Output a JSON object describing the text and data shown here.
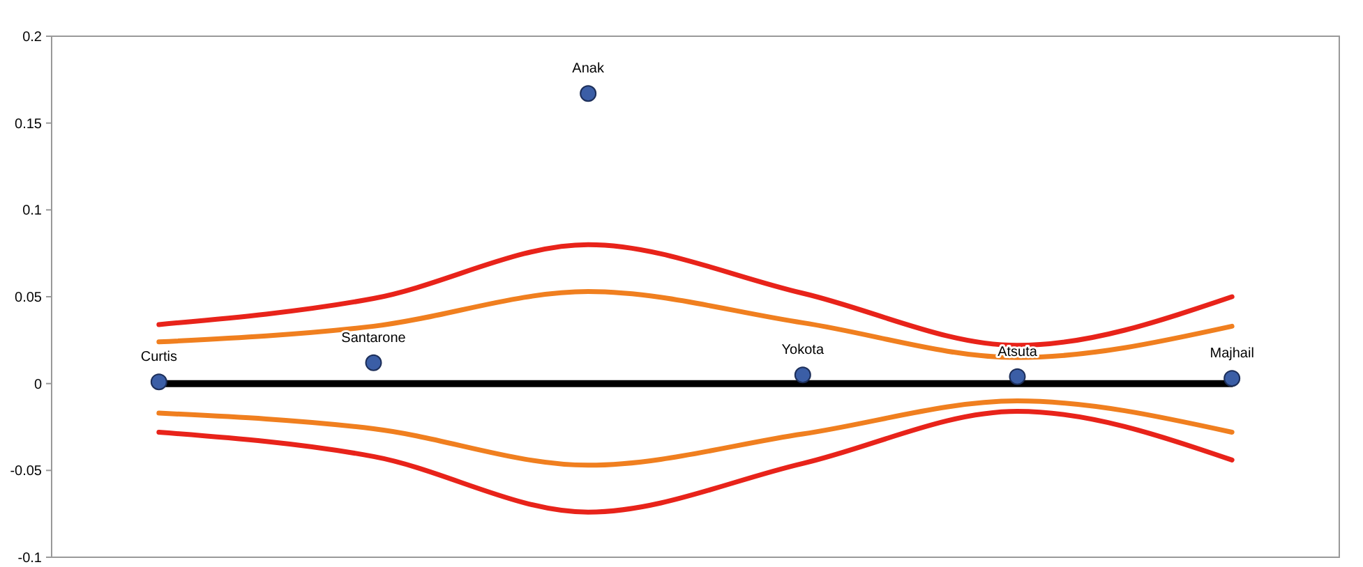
{
  "chart_data": {
    "type": "line",
    "categories": [
      "Curtis",
      "Santarone",
      "Anak",
      "Yokota",
      "Atsuta",
      "Majhail"
    ],
    "series": [
      {
        "color": "#e8231a",
        "marker": "none",
        "values": [
          0.034,
          0.049,
          0.08,
          0.052,
          0.022,
          0.05
        ]
      },
      {
        "color": "#f07f1f",
        "marker": "none",
        "values": [
          0.024,
          0.033,
          0.053,
          0.035,
          0.015,
          0.033
        ]
      },
      {
        "color": "#f07f1f",
        "marker": "none",
        "values": [
          -0.017,
          -0.026,
          -0.047,
          -0.029,
          -0.01,
          -0.028
        ]
      },
      {
        "color": "#e8231a",
        "marker": "none",
        "values": [
          -0.028,
          -0.042,
          -0.074,
          -0.046,
          -0.016,
          -0.044
        ]
      },
      {
        "color": "#000000",
        "marker": "none",
        "values": [
          0,
          0,
          0,
          0,
          0,
          0
        ]
      },
      {
        "type": "scatter",
        "color": "#3b5ea6",
        "marker": "circle",
        "values": [
          0.001,
          0.012,
          0.167,
          0.005,
          0.004,
          0.003
        ]
      }
    ],
    "ylim": [
      -0.1,
      0.2
    ],
    "yticks": [
      -0.1,
      -0.05,
      0,
      0.05,
      0.1,
      0.15,
      0.2
    ],
    "grid": false,
    "line_style": "solid"
  }
}
